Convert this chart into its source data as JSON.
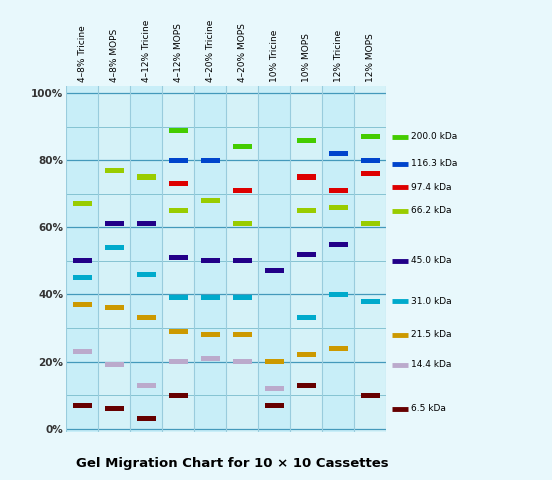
{
  "title": "Gel Migration Chart for 10 × 10 Cassettes",
  "background_color": "#e8f8fc",
  "plot_bg_color_even": "#c8eef8",
  "plot_bg_color_odd": "#d5f2f8",
  "columns": [
    "4–8% Tricine",
    "4–8% MOPS",
    "4–12% Tricine",
    "4–12% MOPS",
    "4–20% Tricine",
    "4–20% MOPS",
    "10% Tricine",
    "10% MOPS",
    "12% Tricine",
    "12% MOPS"
  ],
  "protein_keys": [
    "200.0",
    "116.3",
    "97.4",
    "66.2",
    "45.0",
    "31.0",
    "21.5",
    "14.4",
    "6.5"
  ],
  "legend_labels": [
    "200.0 kDa",
    "116.3 kDa",
    "97.4 kDa",
    "66.2 kDa",
    "45.0 kDa",
    "31.0 kDa",
    "21.5 kDa",
    "14.4 kDa",
    "6.5 kDa"
  ],
  "band_colors": [
    "#44cc00",
    "#0044cc",
    "#dd0000",
    "#99cc00",
    "#220088",
    "#00aacc",
    "#cc9900",
    "#bbaacc",
    "#660000"
  ],
  "bands": {
    "4-8% Tricine": {
      "200.0": null,
      "116.3": null,
      "97.4": null,
      "66.2": 67,
      "45.0": 50,
      "31.0": 45,
      "21.5": 37,
      "14.4": 23,
      "6.5": 7
    },
    "4-8% MOPS": {
      "200.0": null,
      "116.3": null,
      "97.4": null,
      "66.2": 77,
      "45.0": 61,
      "31.0": 54,
      "21.5": 36,
      "14.4": 19,
      "6.5": 6
    },
    "4-12% Tricine": {
      "200.0": null,
      "116.3": null,
      "97.4": null,
      "66.2": 75,
      "45.0": 61,
      "31.0": 46,
      "21.5": 33,
      "14.4": 13,
      "6.5": 3
    },
    "4-12% MOPS": {
      "200.0": 89,
      "116.3": 80,
      "97.4": 73,
      "66.2": 65,
      "45.0": 51,
      "31.0": 39,
      "21.5": 29,
      "14.4": 20,
      "6.5": 10
    },
    "4-20% Tricine": {
      "200.0": null,
      "116.3": 80,
      "97.4": null,
      "66.2": 68,
      "45.0": 50,
      "31.0": 39,
      "21.5": 28,
      "14.4": 21,
      "6.5": null
    },
    "4-20% MOPS": {
      "200.0": 84,
      "116.3": null,
      "97.4": 71,
      "66.2": 61,
      "45.0": 50,
      "31.0": 39,
      "21.5": 28,
      "14.4": 20,
      "6.5": null
    },
    "10% Tricine": {
      "200.0": null,
      "116.3": null,
      "97.4": null,
      "66.2": null,
      "45.0": 47,
      "31.0": null,
      "21.5": 20,
      "14.4": 12,
      "6.5": 7
    },
    "10% MOPS": {
      "200.0": 86,
      "116.3": null,
      "97.4": 75,
      "66.2": 65,
      "45.0": 52,
      "31.0": 33,
      "21.5": 22,
      "14.4": null,
      "6.5": 13
    },
    "12% Tricine": {
      "200.0": null,
      "116.3": 82,
      "97.4": 71,
      "66.2": 66,
      "45.0": 55,
      "31.0": 40,
      "21.5": 24,
      "14.4": null,
      "6.5": null
    },
    "12% MOPS": {
      "200.0": 87,
      "116.3": 80,
      "97.4": 76,
      "66.2": 61,
      "45.0": null,
      "31.0": 38,
      "21.5": null,
      "14.4": null,
      "6.5": 10
    }
  },
  "yticks": [
    0,
    20,
    40,
    60,
    80,
    100
  ],
  "ytick_labels": [
    "0%",
    "20%",
    "40%",
    "60%",
    "80%",
    "100%"
  ],
  "grid_lines": [
    10,
    20,
    30,
    40,
    50,
    60,
    70,
    80,
    90,
    100
  ],
  "border_lines": [
    0,
    20,
    40,
    60,
    80,
    100
  ],
  "grid_color": "#7abccc",
  "border_color": "#4499bb",
  "col_sep_color": "#99ccdd"
}
